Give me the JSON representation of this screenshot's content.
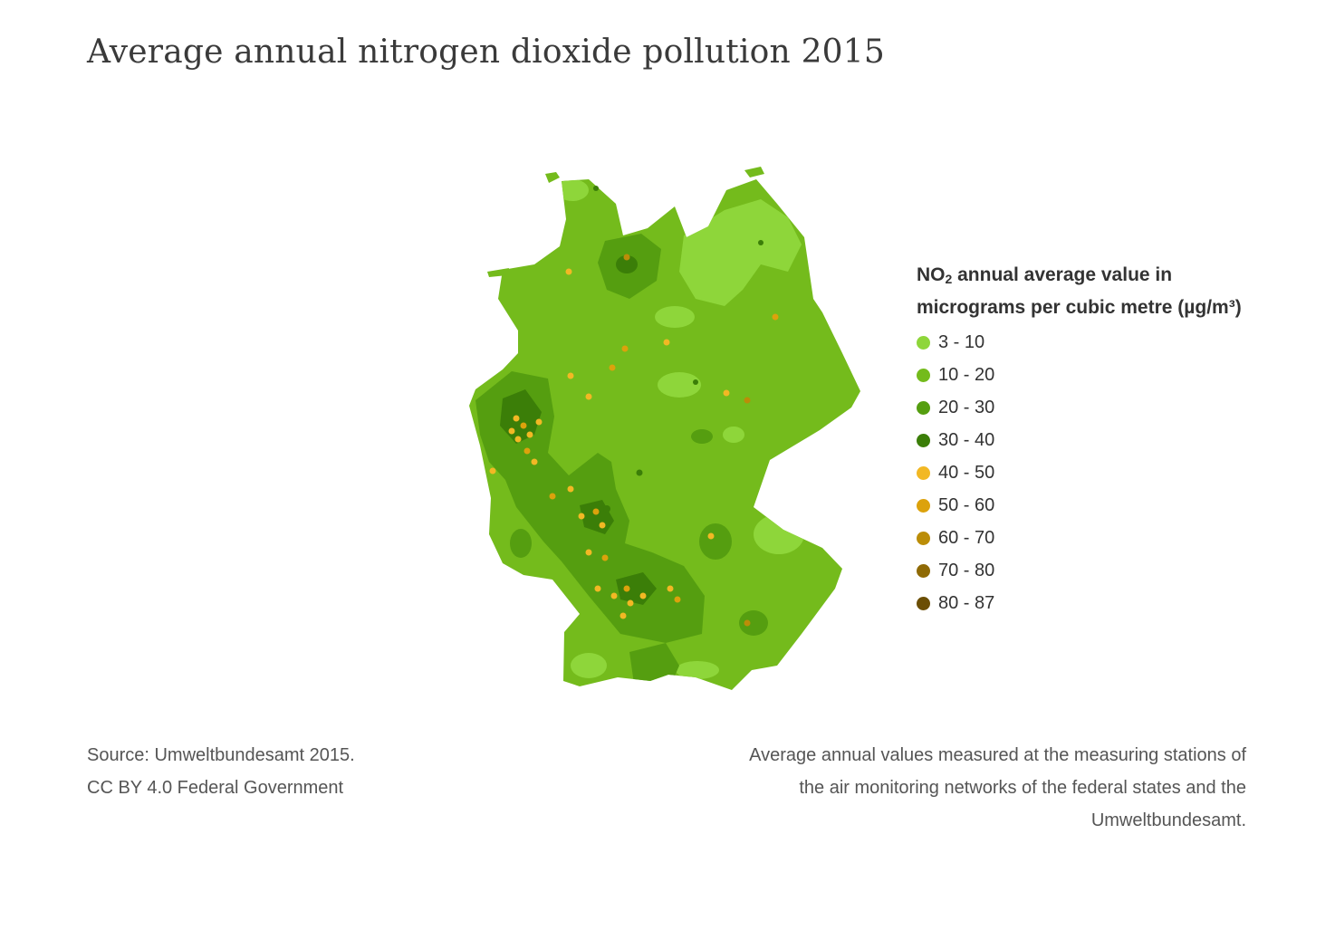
{
  "title": "Average annual nitrogen dioxide pollution 2015",
  "legend": {
    "title_prefix": "NO",
    "title_subscript": "2",
    "title_line1_rest": " annual average value in",
    "title_line2": "micrograms per cubic metre (µg/m³)",
    "items": [
      {
        "label": "3 - 10",
        "color": "#8ed63a"
      },
      {
        "label": "10 - 20",
        "color": "#74bb1c"
      },
      {
        "label": "20 - 30",
        "color": "#559e10"
      },
      {
        "label": "30 - 40",
        "color": "#3b7e08"
      },
      {
        "label": "40 - 50",
        "color": "#f2b824"
      },
      {
        "label": "50 - 60",
        "color": "#dca20c"
      },
      {
        "label": "60 - 70",
        "color": "#bb8d08"
      },
      {
        "label": "70 - 80",
        "color": "#8f6a05"
      },
      {
        "label": "80 - 87",
        "color": "#6b4e04"
      }
    ]
  },
  "footer": {
    "source_line1": "Source: Umweltbundesamt 2015.",
    "source_line2": "CC BY 4.0 Federal Government",
    "note_line1": "Average annual values measured at the measuring stations of",
    "note_line2": "the air monitoring networks of the federal states and the",
    "note_line3": "Umweltbundesamt."
  }
}
